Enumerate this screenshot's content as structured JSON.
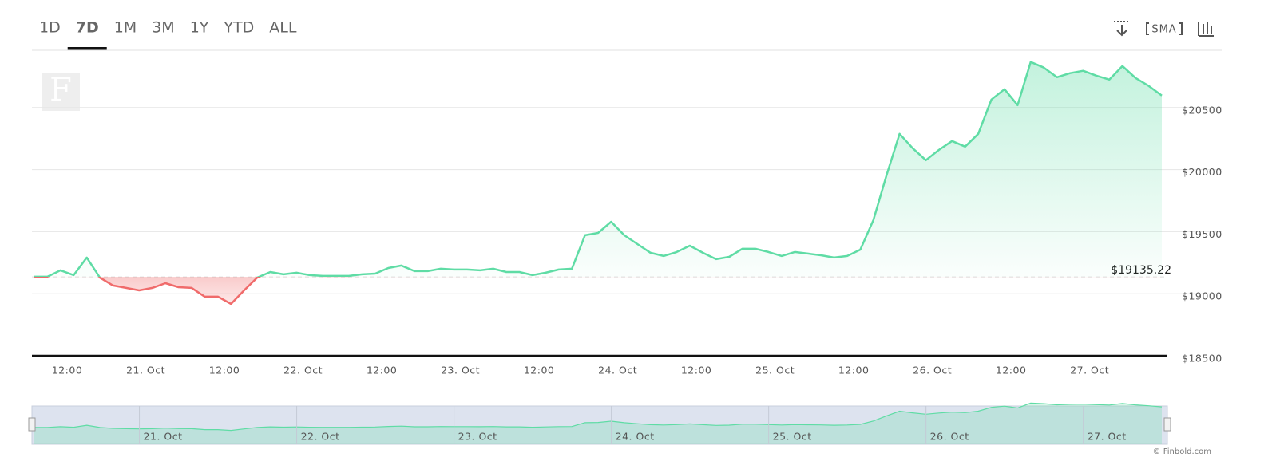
{
  "chart_data": {
    "type": "line",
    "values": [
      19137,
      19137,
      19188,
      19150,
      19291,
      19130,
      19066,
      19047,
      19027,
      19047,
      19085,
      19053,
      19047,
      18976,
      18976,
      18918,
      19027,
      19130,
      19175,
      19156,
      19169,
      19150,
      19143,
      19143,
      19143,
      19156,
      19162,
      19207,
      19227,
      19182,
      19182,
      19201,
      19195,
      19195,
      19188,
      19201,
      19175,
      19175,
      19150,
      19169,
      19195,
      19201,
      19471,
      19490,
      19580,
      19471,
      19400,
      19330,
      19304,
      19336,
      19387,
      19330,
      19278,
      19297,
      19362,
      19362,
      19336,
      19304,
      19336,
      19323,
      19310,
      19291,
      19304,
      19355,
      19593,
      19953,
      20288,
      20172,
      20076,
      20159,
      20230,
      20185,
      20288,
      20564,
      20648,
      20519,
      20867,
      20822,
      20744,
      20777,
      20796,
      20757,
      20725,
      20834,
      20738,
      20674,
      20597
    ],
    "baseline": {
      "value": 19135.22,
      "label": "$19135.22"
    },
    "up_color": "#5fdca5",
    "down_color": "#f06b6b",
    "ylim": [
      18500,
      21000
    ],
    "yticks": [
      {
        "value": 18500,
        "label": "$18500"
      },
      {
        "value": 19000,
        "label": "$19000"
      },
      {
        "value": 19500,
        "label": "$19500"
      },
      {
        "value": 20000,
        "label": "$20000"
      },
      {
        "value": 20500,
        "label": "$20500"
      }
    ],
    "xticks": [
      {
        "value": 2.5,
        "label": "12:00"
      },
      {
        "value": 8.5,
        "label": "21. Oct"
      },
      {
        "value": 14.5,
        "label": "12:00"
      },
      {
        "value": 20.5,
        "label": "22. Oct"
      },
      {
        "value": 26.5,
        "label": "12:00"
      },
      {
        "value": 32.5,
        "label": "23. Oct"
      },
      {
        "value": 38.5,
        "label": "12:00"
      },
      {
        "value": 44.5,
        "label": "24. Oct"
      },
      {
        "value": 50.5,
        "label": "12:00"
      },
      {
        "value": 56.5,
        "label": "25. Oct"
      },
      {
        "value": 62.5,
        "label": "12:00"
      },
      {
        "value": 68.5,
        "label": "26. Oct"
      },
      {
        "value": 74.5,
        "label": "12:00"
      },
      {
        "value": 80.5,
        "label": "27. Oct"
      }
    ],
    "grid": true
  },
  "toolbar": {
    "ranges": [
      "1D",
      "7D",
      "1M",
      "3M",
      "1Y",
      "YTD",
      "ALL"
    ],
    "selected": "7D",
    "indicator": "SMA"
  },
  "watermark": "F",
  "credit": "© Finbold.com"
}
